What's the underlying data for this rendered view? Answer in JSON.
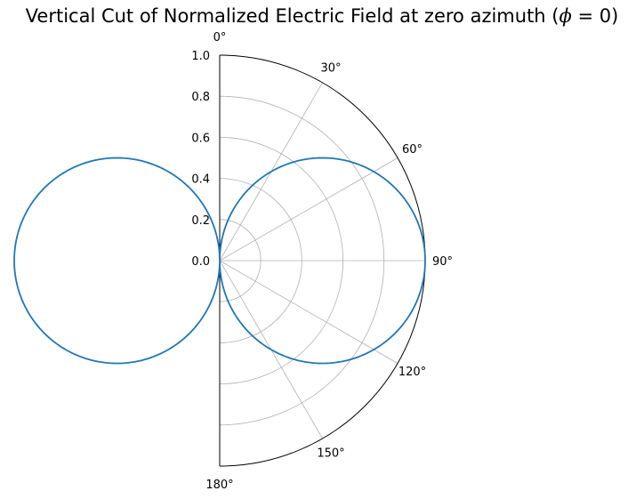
{
  "chart_data": {
    "type": "line",
    "projection": "polar-half",
    "title": "Vertical Cut of Normalized Electric Field at zero azimuth (ϕ = 0)",
    "title_parts": {
      "prefix": "Vertical Cut of Normalized Electric Field at zero azimuth (",
      "phi": "ϕ",
      "suffix": " = 0)"
    },
    "theta_zero_location": "top",
    "theta_direction": "clockwise",
    "theta_range_deg": [
      0,
      180
    ],
    "r_range": [
      0,
      1.0
    ],
    "grid": true,
    "theta_tick_values": [
      0,
      30,
      60,
      90,
      120,
      150,
      180
    ],
    "theta_tick_labels": [
      "0°",
      "30°",
      "60°",
      "90°",
      "120°",
      "150°",
      "180°"
    ],
    "r_tick_values": [
      0.0,
      0.2,
      0.4,
      0.6,
      0.8,
      1.0
    ],
    "r_tick_labels": [
      "0.0",
      "0.2",
      "0.4",
      "0.6",
      "0.8",
      "1.0"
    ],
    "series": [
      {
        "color": "#1f77b4",
        "function": "r = |sin(theta)|",
        "theta_deg": [
          0,
          15,
          30,
          45,
          60,
          75,
          90,
          105,
          120,
          135,
          150,
          165,
          180
        ],
        "r": [
          0.0,
          0.259,
          0.5,
          0.707,
          0.866,
          0.966,
          1.0,
          0.966,
          0.866,
          0.707,
          0.5,
          0.259,
          0.0
        ]
      }
    ]
  }
}
